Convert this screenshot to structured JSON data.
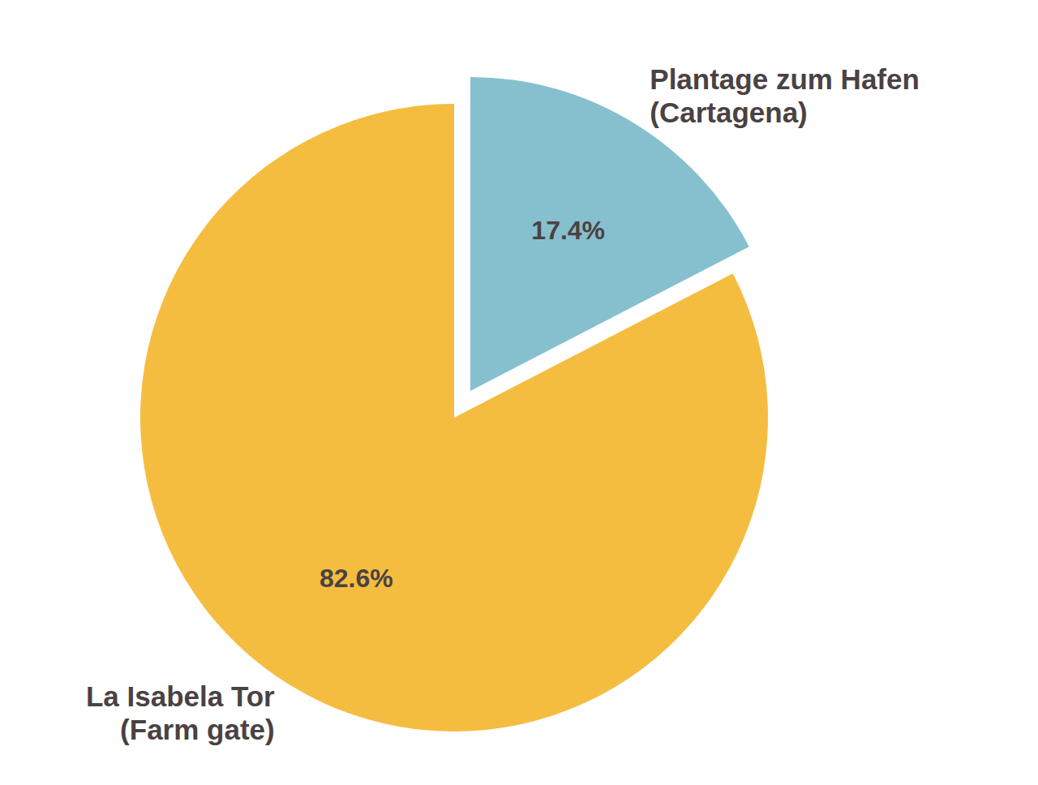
{
  "chart_data": {
    "type": "pie",
    "categories": [
      "Plantage zum Hafen\n(Cartagena)",
      "La Isabela Tor\n(Farm gate)"
    ],
    "values": [
      17.4,
      82.6
    ],
    "value_labels": [
      "17.4%",
      "82.6%"
    ],
    "colors": [
      "#86c0cf",
      "#f5bd40"
    ],
    "data_labels": true
  }
}
